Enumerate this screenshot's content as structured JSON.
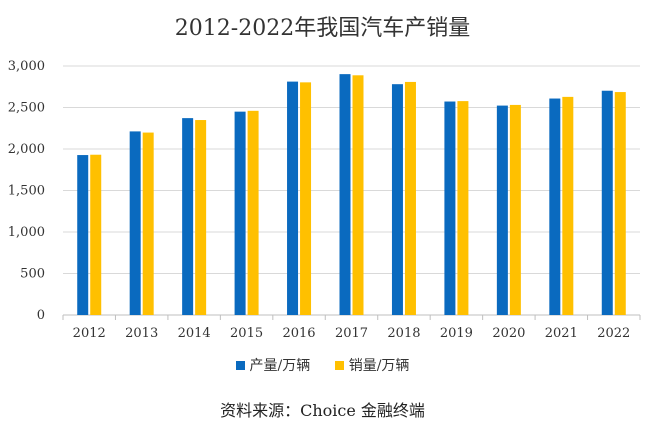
{
  "chart_data": {
    "type": "bar",
    "title": "2012-2022年我国汽车产销量",
    "categories": [
      "2012",
      "2013",
      "2014",
      "2015",
      "2016",
      "2017",
      "2018",
      "2019",
      "2020",
      "2021",
      "2022"
    ],
    "series": [
      {
        "name": "产量/万辆",
        "color": "#0A6ABF",
        "values": [
          1927,
          2212,
          2372,
          2450,
          2812,
          2902,
          2781,
          2572,
          2523,
          2608,
          2702
        ]
      },
      {
        "name": "销量/万辆",
        "color": "#FFC000",
        "values": [
          1931,
          2198,
          2349,
          2460,
          2803,
          2888,
          2808,
          2577,
          2531,
          2628,
          2686
        ]
      }
    ],
    "y_ticks": [
      "0",
      "500",
      "1,000",
      "1,500",
      "2,000",
      "2,500",
      "3,000"
    ],
    "ylim": [
      0,
      3000
    ],
    "grid": true,
    "legend_position": "bottom"
  },
  "source_note": "资料来源：Choice 金融终端"
}
